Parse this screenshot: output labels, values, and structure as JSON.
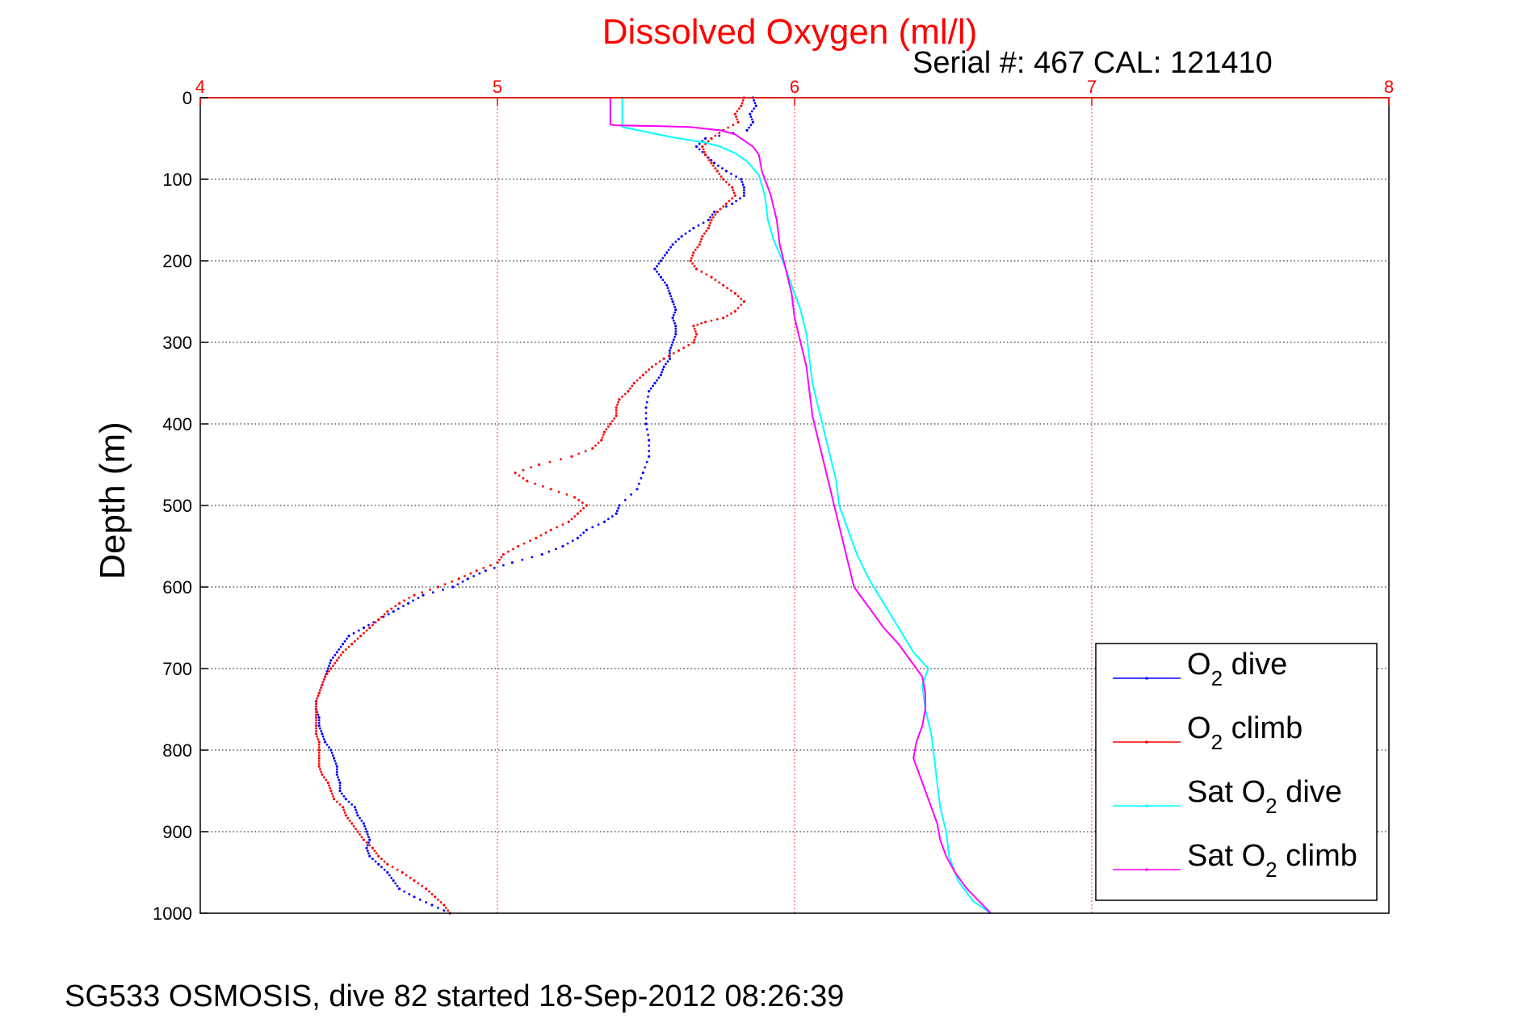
{
  "chart_data": {
    "type": "scatter",
    "title": "Dissolved Oxygen (ml/l)",
    "subtitle": "Serial #: 467  CAL: 121410",
    "ylabel": "Depth (m)",
    "xlabel": "",
    "footer": "SG533 OSMOSIS, dive 82 started 18-Sep-2012 08:26:39",
    "xlim": [
      4,
      8
    ],
    "ylim": [
      0,
      1000
    ],
    "y_reversed": true,
    "x_axis_position": "top",
    "xticks": [
      4,
      5,
      6,
      7,
      8
    ],
    "xtick_labels": [
      "4",
      "5",
      "6",
      "7",
      "8"
    ],
    "yticks": [
      0,
      100,
      200,
      300,
      400,
      500,
      600,
      700,
      800,
      900,
      1000
    ],
    "ytick_labels": [
      "0",
      "100",
      "200",
      "300",
      "400",
      "500",
      "600",
      "700",
      "800",
      "900",
      "1000"
    ],
    "grid": true,
    "x_grid_color": "#ff0000",
    "y_grid_color": "#000000",
    "legend": {
      "position": "bottom-right",
      "entries": [
        {
          "pre": "O",
          "sub": "2",
          "post": " dive"
        },
        {
          "pre": "O",
          "sub": "2",
          "post": " climb"
        },
        {
          "pre": "Sat O",
          "sub": "2",
          "post": " dive"
        },
        {
          "pre": "Sat O",
          "sub": "2",
          "post": " climb"
        }
      ]
    },
    "series": [
      {
        "key": "o2_dive",
        "style": "dots",
        "color": "#0000ff",
        "points": [
          [
            5.86,
            0
          ],
          [
            5.87,
            10
          ],
          [
            5.85,
            20
          ],
          [
            5.86,
            30
          ],
          [
            5.84,
            40
          ],
          [
            5.7,
            50
          ],
          [
            5.67,
            60
          ],
          [
            5.7,
            70
          ],
          [
            5.73,
            80
          ],
          [
            5.77,
            90
          ],
          [
            5.82,
            100
          ],
          [
            5.83,
            110
          ],
          [
            5.83,
            120
          ],
          [
            5.79,
            130
          ],
          [
            5.73,
            140
          ],
          [
            5.71,
            150
          ],
          [
            5.66,
            160
          ],
          [
            5.62,
            170
          ],
          [
            5.59,
            180
          ],
          [
            5.57,
            190
          ],
          [
            5.55,
            200
          ],
          [
            5.53,
            210
          ],
          [
            5.55,
            220
          ],
          [
            5.57,
            230
          ],
          [
            5.58,
            240
          ],
          [
            5.59,
            250
          ],
          [
            5.6,
            260
          ],
          [
            5.59,
            270
          ],
          [
            5.6,
            280
          ],
          [
            5.6,
            290
          ],
          [
            5.59,
            300
          ],
          [
            5.58,
            310
          ],
          [
            5.58,
            320
          ],
          [
            5.56,
            330
          ],
          [
            5.55,
            340
          ],
          [
            5.53,
            350
          ],
          [
            5.51,
            360
          ],
          [
            5.5,
            380
          ],
          [
            5.5,
            400
          ],
          [
            5.51,
            420
          ],
          [
            5.51,
            440
          ],
          [
            5.49,
            460
          ],
          [
            5.47,
            480
          ],
          [
            5.41,
            500
          ],
          [
            5.4,
            510
          ],
          [
            5.36,
            520
          ],
          [
            5.3,
            530
          ],
          [
            5.27,
            540
          ],
          [
            5.22,
            550
          ],
          [
            5.15,
            560
          ],
          [
            5.05,
            570
          ],
          [
            4.96,
            580
          ],
          [
            4.9,
            590
          ],
          [
            4.85,
            600
          ],
          [
            4.75,
            610
          ],
          [
            4.7,
            620
          ],
          [
            4.65,
            630
          ],
          [
            4.6,
            640
          ],
          [
            4.55,
            650
          ],
          [
            4.5,
            660
          ],
          [
            4.48,
            670
          ],
          [
            4.46,
            680
          ],
          [
            4.44,
            690
          ],
          [
            4.43,
            700
          ],
          [
            4.42,
            710
          ],
          [
            4.41,
            720
          ],
          [
            4.4,
            730
          ],
          [
            4.39,
            740
          ],
          [
            4.39,
            750
          ],
          [
            4.4,
            760
          ],
          [
            4.4,
            770
          ],
          [
            4.41,
            780
          ],
          [
            4.42,
            790
          ],
          [
            4.44,
            800
          ],
          [
            4.45,
            810
          ],
          [
            4.46,
            820
          ],
          [
            4.46,
            830
          ],
          [
            4.47,
            840
          ],
          [
            4.47,
            850
          ],
          [
            4.49,
            860
          ],
          [
            4.52,
            870
          ],
          [
            4.53,
            880
          ],
          [
            4.55,
            890
          ],
          [
            4.56,
            900
          ],
          [
            4.57,
            910
          ],
          [
            4.56,
            920
          ],
          [
            4.57,
            930
          ],
          [
            4.6,
            940
          ],
          [
            4.63,
            950
          ],
          [
            4.65,
            960
          ],
          [
            4.67,
            970
          ],
          [
            4.72,
            980
          ],
          [
            4.78,
            990
          ],
          [
            4.84,
            1000
          ]
        ]
      },
      {
        "key": "o2_climb",
        "style": "dots",
        "color": "#ff0000",
        "points": [
          [
            4.84,
            1000
          ],
          [
            4.82,
            990
          ],
          [
            4.79,
            980
          ],
          [
            4.76,
            970
          ],
          [
            4.72,
            960
          ],
          [
            4.68,
            950
          ],
          [
            4.63,
            940
          ],
          [
            4.6,
            930
          ],
          [
            4.58,
            920
          ],
          [
            4.55,
            910
          ],
          [
            4.53,
            900
          ],
          [
            4.51,
            890
          ],
          [
            4.49,
            880
          ],
          [
            4.48,
            870
          ],
          [
            4.45,
            860
          ],
          [
            4.44,
            850
          ],
          [
            4.43,
            840
          ],
          [
            4.41,
            830
          ],
          [
            4.4,
            820
          ],
          [
            4.4,
            810
          ],
          [
            4.4,
            800
          ],
          [
            4.4,
            790
          ],
          [
            4.39,
            780
          ],
          [
            4.39,
            770
          ],
          [
            4.39,
            760
          ],
          [
            4.39,
            750
          ],
          [
            4.39,
            740
          ],
          [
            4.4,
            730
          ],
          [
            4.41,
            720
          ],
          [
            4.42,
            710
          ],
          [
            4.44,
            700
          ],
          [
            4.46,
            690
          ],
          [
            4.48,
            680
          ],
          [
            4.51,
            670
          ],
          [
            4.54,
            660
          ],
          [
            4.57,
            650
          ],
          [
            4.6,
            640
          ],
          [
            4.63,
            630
          ],
          [
            4.67,
            620
          ],
          [
            4.72,
            610
          ],
          [
            4.8,
            600
          ],
          [
            4.87,
            590
          ],
          [
            4.93,
            580
          ],
          [
            5.0,
            570
          ],
          [
            5.02,
            560
          ],
          [
            5.07,
            550
          ],
          [
            5.13,
            540
          ],
          [
            5.18,
            530
          ],
          [
            5.24,
            520
          ],
          [
            5.27,
            510
          ],
          [
            5.3,
            500
          ],
          [
            5.26,
            490
          ],
          [
            5.18,
            480
          ],
          [
            5.1,
            470
          ],
          [
            5.06,
            460
          ],
          [
            5.14,
            450
          ],
          [
            5.25,
            440
          ],
          [
            5.32,
            430
          ],
          [
            5.35,
            420
          ],
          [
            5.36,
            410
          ],
          [
            5.38,
            400
          ],
          [
            5.4,
            390
          ],
          [
            5.4,
            380
          ],
          [
            5.41,
            370
          ],
          [
            5.44,
            360
          ],
          [
            5.46,
            350
          ],
          [
            5.49,
            340
          ],
          [
            5.52,
            330
          ],
          [
            5.56,
            320
          ],
          [
            5.61,
            310
          ],
          [
            5.66,
            300
          ],
          [
            5.67,
            290
          ],
          [
            5.66,
            280
          ],
          [
            5.7,
            275
          ],
          [
            5.76,
            270
          ],
          [
            5.8,
            262
          ],
          [
            5.83,
            250
          ],
          [
            5.8,
            240
          ],
          [
            5.76,
            230
          ],
          [
            5.72,
            220
          ],
          [
            5.67,
            210
          ],
          [
            5.65,
            200
          ],
          [
            5.66,
            190
          ],
          [
            5.68,
            180
          ],
          [
            5.69,
            170
          ],
          [
            5.71,
            160
          ],
          [
            5.72,
            150
          ],
          [
            5.74,
            140
          ],
          [
            5.77,
            130
          ],
          [
            5.8,
            120
          ],
          [
            5.79,
            110
          ],
          [
            5.76,
            100
          ],
          [
            5.74,
            90
          ],
          [
            5.72,
            80
          ],
          [
            5.7,
            70
          ],
          [
            5.69,
            60
          ],
          [
            5.72,
            50
          ],
          [
            5.76,
            40
          ],
          [
            5.81,
            30
          ],
          [
            5.8,
            20
          ],
          [
            5.82,
            10
          ],
          [
            5.83,
            0
          ]
        ]
      },
      {
        "key": "sat_dive",
        "style": "line",
        "color": "#00ffff",
        "points": [
          [
            5.42,
            0
          ],
          [
            5.42,
            36
          ],
          [
            5.5,
            42
          ],
          [
            5.58,
            48
          ],
          [
            5.7,
            55
          ],
          [
            5.75,
            60
          ],
          [
            5.8,
            68
          ],
          [
            5.84,
            78
          ],
          [
            5.88,
            95
          ],
          [
            5.9,
            120
          ],
          [
            5.91,
            150
          ],
          [
            5.93,
            175
          ],
          [
            5.96,
            200
          ],
          [
            5.99,
            230
          ],
          [
            6.02,
            260
          ],
          [
            6.04,
            290
          ],
          [
            6.05,
            320
          ],
          [
            6.06,
            350
          ],
          [
            6.08,
            380
          ],
          [
            6.1,
            410
          ],
          [
            6.12,
            440
          ],
          [
            6.14,
            470
          ],
          [
            6.15,
            500
          ],
          [
            6.18,
            530
          ],
          [
            6.21,
            560
          ],
          [
            6.25,
            590
          ],
          [
            6.3,
            620
          ],
          [
            6.35,
            650
          ],
          [
            6.4,
            680
          ],
          [
            6.45,
            700
          ],
          [
            6.43,
            720
          ],
          [
            6.44,
            750
          ],
          [
            6.46,
            780
          ],
          [
            6.47,
            810
          ],
          [
            6.48,
            840
          ],
          [
            6.49,
            870
          ],
          [
            6.51,
            900
          ],
          [
            6.52,
            930
          ],
          [
            6.55,
            960
          ],
          [
            6.6,
            985
          ],
          [
            6.66,
            1000
          ]
        ]
      },
      {
        "key": "sat_climb",
        "style": "line",
        "color": "#ff00ff",
        "points": [
          [
            6.66,
            1000
          ],
          [
            6.62,
            985
          ],
          [
            6.58,
            970
          ],
          [
            6.54,
            950
          ],
          [
            6.51,
            930
          ],
          [
            6.49,
            910
          ],
          [
            6.48,
            890
          ],
          [
            6.46,
            870
          ],
          [
            6.44,
            850
          ],
          [
            6.42,
            830
          ],
          [
            6.4,
            810
          ],
          [
            6.41,
            790
          ],
          [
            6.43,
            770
          ],
          [
            6.44,
            750
          ],
          [
            6.44,
            730
          ],
          [
            6.43,
            710
          ],
          [
            6.39,
            690
          ],
          [
            6.35,
            670
          ],
          [
            6.3,
            650
          ],
          [
            6.26,
            630
          ],
          [
            6.2,
            600
          ],
          [
            6.18,
            570
          ],
          [
            6.16,
            540
          ],
          [
            6.14,
            510
          ],
          [
            6.12,
            480
          ],
          [
            6.1,
            450
          ],
          [
            6.08,
            420
          ],
          [
            6.06,
            390
          ],
          [
            6.05,
            360
          ],
          [
            6.04,
            330
          ],
          [
            6.02,
            300
          ],
          [
            6.0,
            270
          ],
          [
            5.99,
            240
          ],
          [
            5.97,
            210
          ],
          [
            5.95,
            180
          ],
          [
            5.94,
            150
          ],
          [
            5.92,
            120
          ],
          [
            5.89,
            90
          ],
          [
            5.88,
            70
          ],
          [
            5.86,
            60
          ],
          [
            5.84,
            55
          ],
          [
            5.8,
            45
          ],
          [
            5.75,
            40
          ],
          [
            5.65,
            36
          ],
          [
            5.55,
            35
          ],
          [
            5.4,
            34
          ],
          [
            5.38,
            33
          ],
          [
            5.38,
            0
          ]
        ]
      }
    ]
  }
}
